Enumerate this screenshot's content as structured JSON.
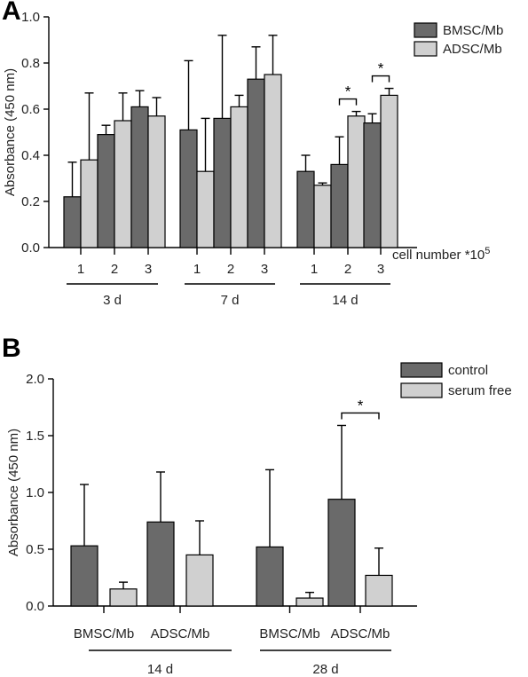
{
  "colors": {
    "dark": "#6a6a6a",
    "light": "#d0d0d0",
    "axis": "#000000"
  },
  "chart_data": [
    {
      "type": "bar",
      "panel_label": "A",
      "ylabel": "Absorbance (450 nm)",
      "ylim": [
        0,
        1.0
      ],
      "yticks": [
        "0.0",
        "0.2",
        "0.4",
        "0.6",
        "0.8",
        "1.0"
      ],
      "xlabel": "cell number *10",
      "xlabel_sup": "5",
      "groups": [
        {
          "label": "3 d",
          "categories": [
            "1",
            "2",
            "3"
          ]
        },
        {
          "label": "7 d",
          "categories": [
            "1",
            "2",
            "3"
          ]
        },
        {
          "label": "14 d",
          "categories": [
            "1",
            "2",
            "3"
          ]
        }
      ],
      "series": [
        {
          "name": "BMSC/Mb",
          "values": [
            0.22,
            0.49,
            0.61,
            0.51,
            0.56,
            0.73,
            0.33,
            0.36,
            0.54
          ],
          "errors": [
            0.15,
            0.04,
            0.07,
            0.3,
            0.36,
            0.14,
            0.07,
            0.12,
            0.04
          ]
        },
        {
          "name": "ADSC/Mb",
          "values": [
            0.38,
            0.55,
            0.57,
            0.33,
            0.61,
            0.75,
            0.27,
            0.57,
            0.66
          ],
          "errors": [
            0.29,
            0.12,
            0.08,
            0.23,
            0.05,
            0.17,
            0.01,
            0.02,
            0.03
          ]
        }
      ],
      "significance": [
        {
          "group": 2,
          "category": 1,
          "label": "*"
        },
        {
          "group": 2,
          "category": 2,
          "label": "*"
        }
      ]
    },
    {
      "type": "bar",
      "panel_label": "B",
      "ylabel": "Absorbance (450 nm)",
      "ylim": [
        0,
        2.0
      ],
      "yticks": [
        "0.0",
        "0.5",
        "1.0",
        "1.5",
        "2.0"
      ],
      "groups": [
        {
          "label": "14 d",
          "categories": [
            "BMSC/Mb",
            "ADSC/Mb"
          ]
        },
        {
          "label": "28 d",
          "categories": [
            "BMSC/Mb",
            "ADSC/Mb"
          ]
        }
      ],
      "series": [
        {
          "name": "control",
          "values": [
            0.53,
            0.74,
            0.52,
            0.94
          ],
          "errors": [
            0.54,
            0.44,
            0.68,
            0.65
          ]
        },
        {
          "name": "serum free",
          "values": [
            0.15,
            0.45,
            0.07,
            0.27
          ],
          "errors": [
            0.06,
            0.3,
            0.05,
            0.24
          ]
        }
      ],
      "significance": [
        {
          "group": 1,
          "category": 1,
          "label": "*"
        }
      ]
    }
  ]
}
